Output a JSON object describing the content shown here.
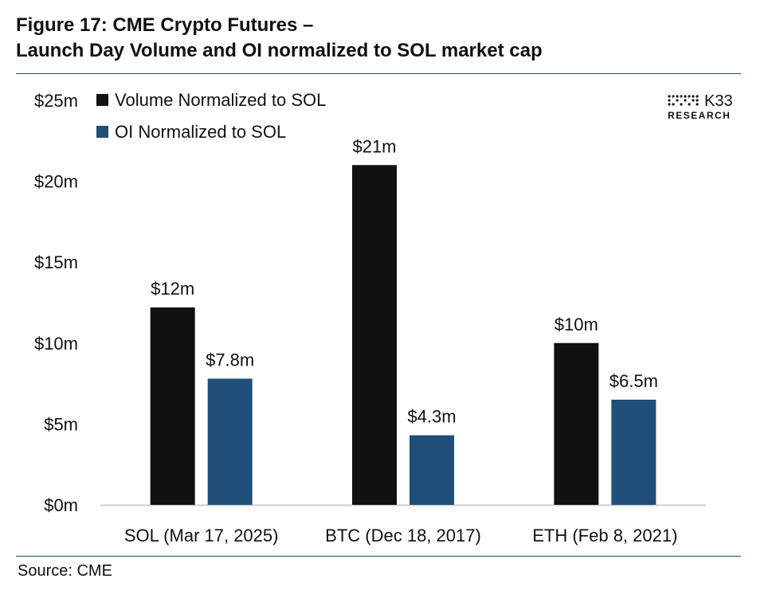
{
  "figure": {
    "title_line1": "Figure 17: CME Crypto Futures –",
    "title_line2": "Launch Day Volume and OI normalized to SOL market cap",
    "source": "Source: CME"
  },
  "logo": {
    "name": "K33",
    "sub": "RESEARCH"
  },
  "chart_data": {
    "type": "bar",
    "categories": [
      "SOL (Mar 17, 2025)",
      "BTC (Dec 18, 2017)",
      "ETH (Feb 8, 2021)"
    ],
    "series": [
      {
        "name": "Volume Normalized to SOL",
        "color": "#111111",
        "values": [
          12.2,
          21.0,
          10.0
        ],
        "labels": [
          "$12m",
          "$21m",
          "$10m"
        ]
      },
      {
        "name": "OI Normalized to SOL",
        "color": "#1f4e79",
        "values": [
          7.8,
          4.3,
          6.5
        ],
        "labels": [
          "$7.8m",
          "$4.3m",
          "$6.5m"
        ]
      }
    ],
    "yticks": [
      0,
      5,
      10,
      15,
      20,
      25
    ],
    "ytick_labels": [
      "$0m",
      "$5m",
      "$10m",
      "$15m",
      "$20m",
      "$25m"
    ],
    "ylim": [
      0,
      25
    ],
    "legend": "top-left",
    "grid": false
  }
}
